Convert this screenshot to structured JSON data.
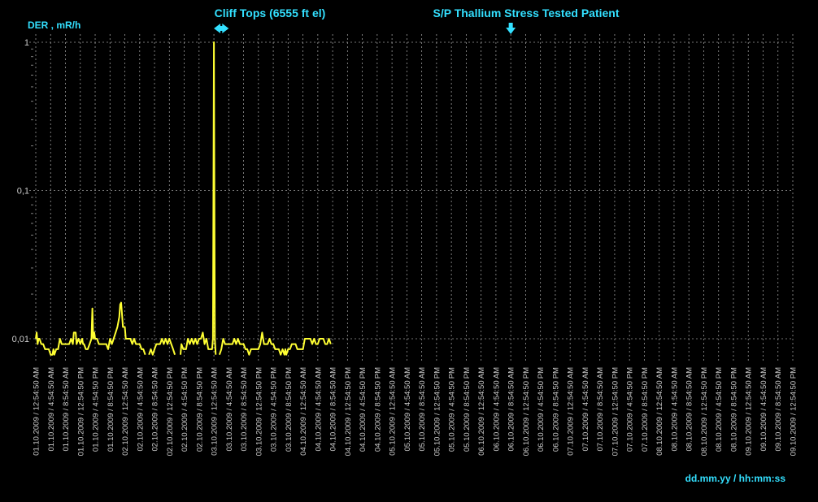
{
  "chart_data": {
    "type": "line",
    "ylabel": "DER , mR/h",
    "xlabel": "dd.mm.yy / hh:mm:ss",
    "y_scale": "log",
    "ylim": [
      0.0068,
      1.0
    ],
    "y_ticks": [
      "0,01",
      "0,1",
      "1"
    ],
    "grid": true,
    "colors": {
      "line": "#ffff33",
      "text": "#33e0ff",
      "ticks": "#cccccc",
      "grid": "#9a9a9a",
      "background": "#000000"
    },
    "annotations": [
      {
        "label": "Cliff Tops (6555 ft el)",
        "marker": "double-arrow",
        "x_range": [
          "03.10.2009 / 12:54:50 AM",
          "03.10.2009 / 4:54:50 AM"
        ]
      },
      {
        "label": "S/P Thallium Stress Tested Patient",
        "marker": "down-arrow",
        "x": "06.10.2009 / 8:54:50 AM"
      }
    ],
    "x_tick_labels": [
      "01.10.2009 / 12:54:50 AM",
      "01.10.2009 / 4:54:50 AM",
      "01.10.2009 / 8:54:50 AM",
      "01.10.2009 / 12:54:50 PM",
      "01.10.2009 / 4:54:50 PM",
      "01.10.2009 / 8:54:50 PM",
      "02.10.2009 / 12:54:50 AM",
      "02.10.2009 / 4:54:50 AM",
      "02.10.2009 / 8:54:50 AM",
      "02.10.2009 / 12:54:50 PM",
      "02.10.2009 / 4:54:50 PM",
      "02.10.2009 / 8:54:50 PM",
      "03.10.2009 / 12:54:50 AM",
      "03.10.2009 / 4:54:50 AM",
      "03.10.2009 / 8:54:50 AM",
      "03.10.2009 / 12:54:50 PM",
      "03.10.2009 / 4:54:50 PM",
      "03.10.2009 / 8:54:50 PM",
      "04.10.2009 / 12:54:50 AM",
      "04.10.2009 / 4:54:50 AM",
      "04.10.2009 / 8:54:50 AM",
      "04.10.2009 / 12:54:50 PM",
      "04.10.2009 / 4:54:50 PM",
      "04.10.2009 / 8:54:50 PM",
      "05.10.2009 / 12:54:50 AM",
      "05.10.2009 / 4:54:50 AM",
      "05.10.2009 / 8:54:50 AM",
      "05.10.2009 / 12:54:50 PM",
      "05.10.2009 / 4:54:50 PM",
      "05.10.2009 / 8:54:50 PM",
      "06.10.2009 / 12:54:50 AM",
      "06.10.2009 / 4:54:50 AM",
      "06.10.2009 / 8:54:50 AM",
      "06.10.2009 / 12:54:50 PM",
      "06.10.2009 / 4:54:50 PM",
      "06.10.2009 / 8:54:50 PM",
      "07.10.2009 / 12:54:50 AM",
      "07.10.2009 / 4:54:50 AM",
      "07.10.2009 / 8:54:50 AM",
      "07.10.2009 / 12:54:50 PM",
      "07.10.2009 / 4:54:50 PM",
      "07.10.2009 / 8:54:50 PM",
      "08.10.2009 / 12:54:50 AM",
      "08.10.2009 / 4:54:50 AM",
      "08.10.2009 / 8:54:50 AM",
      "08.10.2009 / 12:54:50 PM",
      "08.10.2009 / 4:54:50 PM",
      "08.10.2009 / 8:54:50 PM",
      "09.10.2009 / 12:54:50 AM",
      "09.10.2009 / 4:54:50 AM",
      "09.10.2009 / 8:54:50 AM",
      "09.10.2009 / 12:54:50 PM"
    ],
    "series": [
      {
        "values": [
          [
            0.0,
            0.01
          ],
          [
            0.25,
            0.011
          ],
          [
            0.5,
            0.0092
          ],
          [
            0.75,
            0.01
          ],
          [
            1.0,
            0.01
          ],
          [
            1.5,
            0.0092
          ],
          [
            2.0,
            0.0092
          ],
          [
            2.5,
            0.0085
          ],
          [
            3.0,
            0.0085
          ],
          [
            3.5,
            0.0085
          ],
          [
            4.0,
            0.0078
          ],
          [
            4.5,
            0.0078
          ],
          [
            4.75,
            0.0085
          ],
          [
            5.0,
            0.0078
          ],
          [
            5.5,
            0.0085
          ],
          [
            6.0,
            0.0085
          ],
          [
            6.5,
            0.01
          ],
          [
            7.0,
            0.0092
          ],
          [
            8.0,
            0.0092
          ],
          [
            9.0,
            0.0092
          ],
          [
            9.5,
            0.01
          ],
          [
            10.0,
            0.0092
          ],
          [
            10.25,
            0.011
          ],
          [
            10.75,
            0.011
          ],
          [
            11.0,
            0.0092
          ],
          [
            11.5,
            0.01
          ],
          [
            12.0,
            0.0092
          ],
          [
            12.5,
            0.01
          ],
          [
            12.75,
            0.0092
          ],
          [
            13.0,
            0.0092
          ],
          [
            13.5,
            0.0085
          ],
          [
            14.0,
            0.0085
          ],
          [
            14.5,
            0.0092
          ],
          [
            15.0,
            0.01
          ],
          [
            15.25,
            0.016
          ],
          [
            15.5,
            0.01
          ],
          [
            15.75,
            0.011
          ],
          [
            16.0,
            0.01
          ],
          [
            16.5,
            0.01
          ],
          [
            17.0,
            0.0092
          ],
          [
            17.5,
            0.0092
          ],
          [
            18.0,
            0.0092
          ],
          [
            19.0,
            0.0092
          ],
          [
            19.5,
            0.0085
          ],
          [
            20.0,
            0.01
          ],
          [
            20.5,
            0.0092
          ],
          [
            21.0,
            0.01
          ],
          [
            22.0,
            0.012
          ],
          [
            22.5,
            0.014
          ],
          [
            22.75,
            0.017
          ],
          [
            23.0,
            0.0175
          ],
          [
            23.5,
            0.012
          ],
          [
            24.0,
            0.012
          ],
          [
            24.25,
            0.01
          ],
          [
            25.0,
            0.01
          ],
          [
            25.5,
            0.01
          ],
          [
            26.0,
            0.0092
          ],
          [
            26.5,
            0.01
          ],
          [
            27.0,
            0.0092
          ],
          [
            28.0,
            0.0092
          ],
          [
            28.5,
            0.0085
          ],
          [
            29.0,
            0.0085
          ],
          [
            29.5,
            0.0078
          ]
        ]
      },
      {
        "values": [
          [
            30.5,
            0.0078
          ],
          [
            31.0,
            0.0085
          ],
          [
            31.5,
            0.0078
          ],
          [
            32.0,
            0.0085
          ],
          [
            32.5,
            0.0092
          ],
          [
            33.0,
            0.0092
          ],
          [
            33.5,
            0.0092
          ],
          [
            34.0,
            0.01
          ],
          [
            34.5,
            0.0092
          ],
          [
            35.0,
            0.01
          ],
          [
            35.5,
            0.0092
          ],
          [
            36.0,
            0.01
          ],
          [
            36.5,
            0.0092
          ],
          [
            37.0,
            0.0085
          ],
          [
            37.5,
            0.0078
          ]
        ]
      },
      {
        "values": [
          [
            39.0,
            0.0078
          ],
          [
            39.25,
            0.0092
          ],
          [
            39.75,
            0.0085
          ],
          [
            40.5,
            0.0085
          ],
          [
            41.0,
            0.01
          ],
          [
            41.5,
            0.0092
          ],
          [
            42.0,
            0.01
          ],
          [
            42.5,
            0.0092
          ],
          [
            43.0,
            0.01
          ],
          [
            43.5,
            0.0092
          ],
          [
            44.0,
            0.01
          ],
          [
            44.5,
            0.01
          ],
          [
            45.0,
            0.011
          ],
          [
            45.5,
            0.0092
          ],
          [
            46.0,
            0.01
          ],
          [
            46.5,
            0.0085
          ],
          [
            47.0,
            0.0085
          ],
          [
            47.5,
            0.0085
          ],
          [
            47.75,
            0.01
          ],
          [
            48.0,
            1.0
          ],
          [
            48.25,
            0.01
          ],
          [
            48.5,
            0.0078
          ]
        ]
      },
      {
        "values": [
          [
            49.5,
            0.0078
          ],
          [
            50.0,
            0.0085
          ],
          [
            50.5,
            0.01
          ],
          [
            51.0,
            0.0092
          ],
          [
            52.0,
            0.0092
          ],
          [
            53.0,
            0.0092
          ],
          [
            53.5,
            0.01
          ],
          [
            54.0,
            0.0092
          ],
          [
            54.5,
            0.01
          ],
          [
            55.0,
            0.0092
          ],
          [
            56.0,
            0.0092
          ],
          [
            56.5,
            0.0085
          ],
          [
            57.0,
            0.0085
          ],
          [
            57.5,
            0.0078
          ],
          [
            58.0,
            0.0085
          ],
          [
            59.0,
            0.0085
          ],
          [
            60.0,
            0.0085
          ],
          [
            60.5,
            0.0092
          ],
          [
            61.0,
            0.011
          ],
          [
            61.5,
            0.0092
          ],
          [
            62.0,
            0.0092
          ],
          [
            62.5,
            0.0092
          ],
          [
            63.0,
            0.01
          ],
          [
            63.5,
            0.0092
          ],
          [
            64.0,
            0.0092
          ],
          [
            64.5,
            0.0085
          ],
          [
            65.0,
            0.0085
          ],
          [
            65.5,
            0.0085
          ],
          [
            66.0,
            0.0078
          ],
          [
            66.5,
            0.0085
          ],
          [
            67.0,
            0.0078
          ],
          [
            67.25,
            0.0085
          ],
          [
            67.5,
            0.0078
          ],
          [
            68.0,
            0.0085
          ],
          [
            68.5,
            0.0085
          ],
          [
            69.0,
            0.0092
          ],
          [
            69.5,
            0.0092
          ],
          [
            70.0,
            0.0092
          ],
          [
            70.5,
            0.0085
          ],
          [
            71.0,
            0.0085
          ],
          [
            72.0,
            0.0085
          ],
          [
            72.5,
            0.01
          ],
          [
            73.0,
            0.01
          ],
          [
            74.0,
            0.01
          ],
          [
            74.5,
            0.0092
          ],
          [
            75.0,
            0.01
          ],
          [
            75.5,
            0.0092
          ],
          [
            76.0,
            0.0092
          ],
          [
            76.5,
            0.01
          ],
          [
            77.0,
            0.01
          ],
          [
            77.5,
            0.01
          ],
          [
            78.0,
            0.0092
          ],
          [
            78.5,
            0.0092
          ],
          [
            79.0,
            0.01
          ],
          [
            79.5,
            0.0092
          ]
        ]
      }
    ]
  }
}
